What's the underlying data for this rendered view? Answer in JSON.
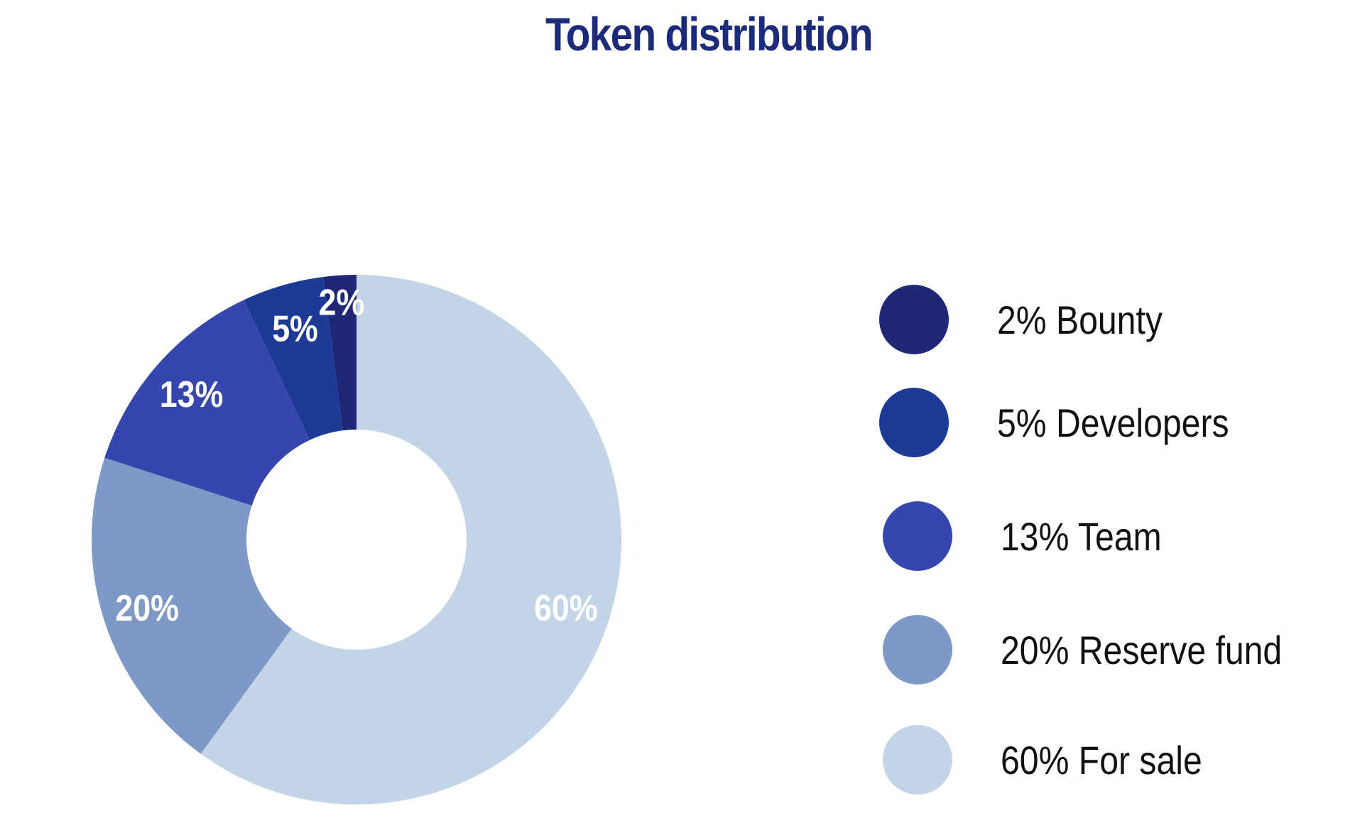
{
  "chart_data": {
    "type": "pie",
    "title": "Token distribution",
    "donut": true,
    "slices": [
      {
        "label": "Bounty",
        "value": 2,
        "data_label": "2%",
        "legend": "2% Bounty",
        "color": "#1e2876"
      },
      {
        "label": "Developers",
        "value": 5,
        "data_label": "5%",
        "legend": "5% Developers",
        "color": "#1c3a96"
      },
      {
        "label": "Team",
        "value": 13,
        "data_label": "13%",
        "legend": "13% Team",
        "color": "#3547ac"
      },
      {
        "label": "Reserve fund",
        "value": 20,
        "data_label": "20%",
        "legend": "20% Reserve fund",
        "color": "#7e99c6"
      },
      {
        "label": "For sale",
        "value": 60,
        "data_label": "60%",
        "legend": "60% For sale",
        "color": "#c3d4e6"
      }
    ],
    "start_angle": "top",
    "direction": "counter-clockwise",
    "legend_position": "right"
  }
}
